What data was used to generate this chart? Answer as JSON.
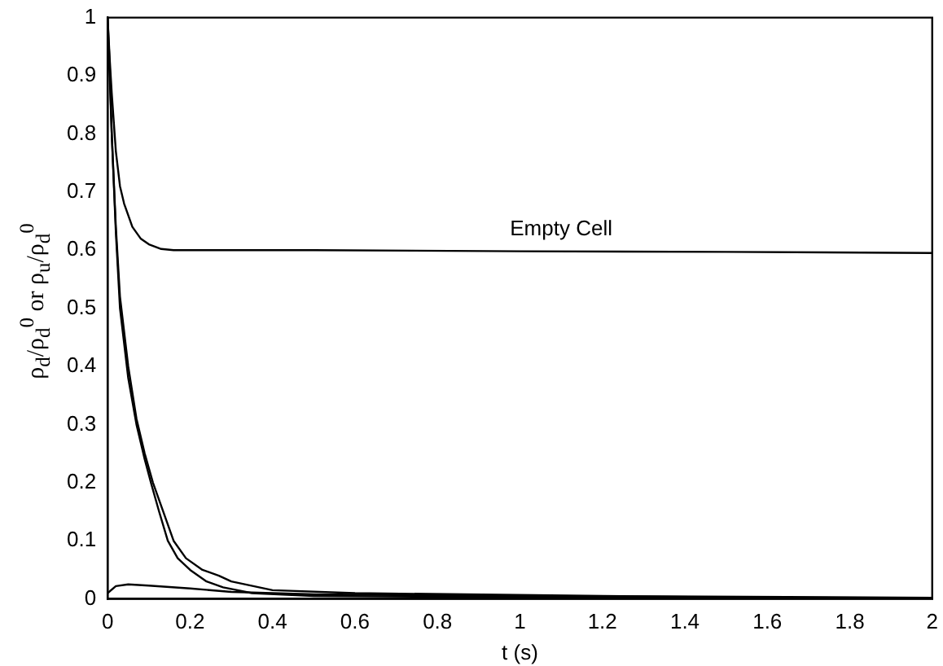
{
  "chart_data": {
    "type": "line",
    "xlabel": "t (s)",
    "ylabel": "ρ$_{d}$/ρ$_{d}$$^{0}$ or ρ$_{u}$/ρ$_{d}$$^{0}$",
    "xlim": [
      0,
      2
    ],
    "xticks": [
      0,
      0.2,
      0.4,
      0.6,
      0.8,
      1,
      1.2,
      1.4,
      1.6,
      1.8,
      2
    ],
    "ylim": [
      0,
      1
    ],
    "yticks": [
      0,
      0.1,
      0.2,
      0.3,
      0.4,
      0.5,
      0.6,
      0.7,
      0.8,
      0.9,
      1
    ],
    "grid": false,
    "legend": false,
    "marker": "none",
    "line_style": "solid",
    "annotations": [
      {
        "text": "Empty Cell",
        "x": 1.1,
        "y": 0.6
      }
    ],
    "series": [
      {
        "color": "#000000",
        "x": [
          0,
          0.005,
          0.01,
          0.02,
          0.03,
          0.04,
          0.06,
          0.08,
          0.1,
          0.13,
          0.16,
          0.2,
          0.3,
          0.5,
          1,
          1.5,
          2
        ],
        "values": [
          1,
          0.93,
          0.87,
          0.77,
          0.71,
          0.68,
          0.64,
          0.62,
          0.61,
          0.602,
          0.6,
          0.6,
          0.6,
          0.6,
          0.598,
          0.597,
          0.595
        ]
      },
      {
        "color": "#000000",
        "x": [
          0,
          0.005,
          0.01,
          0.02,
          0.03,
          0.05,
          0.07,
          0.09,
          0.105,
          0.125,
          0.146,
          0.17,
          0.2,
          0.24,
          0.28,
          0.35,
          0.5,
          1,
          2
        ],
        "values": [
          1,
          0.92,
          0.8,
          0.63,
          0.5,
          0.38,
          0.3,
          0.24,
          0.2,
          0.15,
          0.1,
          0.07,
          0.05,
          0.03,
          0.02,
          0.01,
          0.005,
          0.003,
          0
        ]
      },
      {
        "color": "#000000",
        "x": [
          0,
          0.005,
          0.01,
          0.02,
          0.03,
          0.05,
          0.07,
          0.09,
          0.11,
          0.13,
          0.16,
          0.19,
          0.23,
          0.27,
          0.3,
          0.4,
          0.6,
          1.2,
          2
        ],
        "values": [
          0.97,
          0.9,
          0.8,
          0.64,
          0.52,
          0.4,
          0.31,
          0.25,
          0.2,
          0.16,
          0.1,
          0.07,
          0.05,
          0.04,
          0.03,
          0.015,
          0.01,
          0.005,
          0.002
        ]
      },
      {
        "color": "#000000",
        "x": [
          0,
          0.02,
          0.05,
          0.1,
          0.2,
          0.3,
          0.5,
          1,
          1.5,
          2
        ],
        "values": [
          0.01,
          0.022,
          0.025,
          0.023,
          0.018,
          0.012,
          0.008,
          0.005,
          0.003,
          0
        ]
      }
    ]
  }
}
